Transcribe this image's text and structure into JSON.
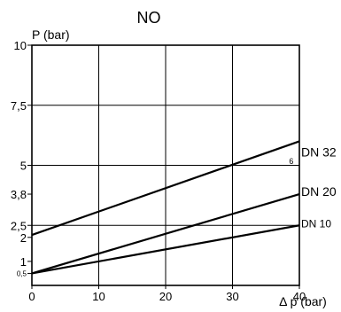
{
  "chart_data": {
    "type": "line",
    "title": "NO",
    "ylabel": "P (bar)",
    "xlabel": "Δ p (bar)",
    "xlim": [
      0,
      40
    ],
    "ylim": [
      0,
      10
    ],
    "x_ticks": [
      0,
      10,
      20,
      30,
      40
    ],
    "y_ticks": [
      {
        "value": 10,
        "label": "10",
        "small": false
      },
      {
        "value": 7.5,
        "label": "7,5",
        "small": false
      },
      {
        "value": 5,
        "label": "5",
        "small": false
      },
      {
        "value": 3.8,
        "label": "3,8",
        "small": false
      },
      {
        "value": 2.5,
        "label": "2,5",
        "small": false
      },
      {
        "value": 2,
        "label": "2",
        "small": false
      },
      {
        "value": 1,
        "label": "1",
        "small": false
      },
      {
        "value": 0.5,
        "label": "0,5",
        "small": true
      }
    ],
    "grid": true,
    "series": [
      {
        "name": "DN 32",
        "x": [
          0,
          40
        ],
        "y": [
          2.1,
          6.0
        ]
      },
      {
        "name": "DN 20",
        "x": [
          0,
          40
        ],
        "y": [
          0.5,
          3.8
        ]
      },
      {
        "name": "DN 10",
        "x": [
          0,
          40
        ],
        "y": [
          0.5,
          2.5
        ]
      }
    ],
    "annotations": [
      {
        "text": "6",
        "x": 38.8,
        "y": 5.5
      }
    ]
  }
}
